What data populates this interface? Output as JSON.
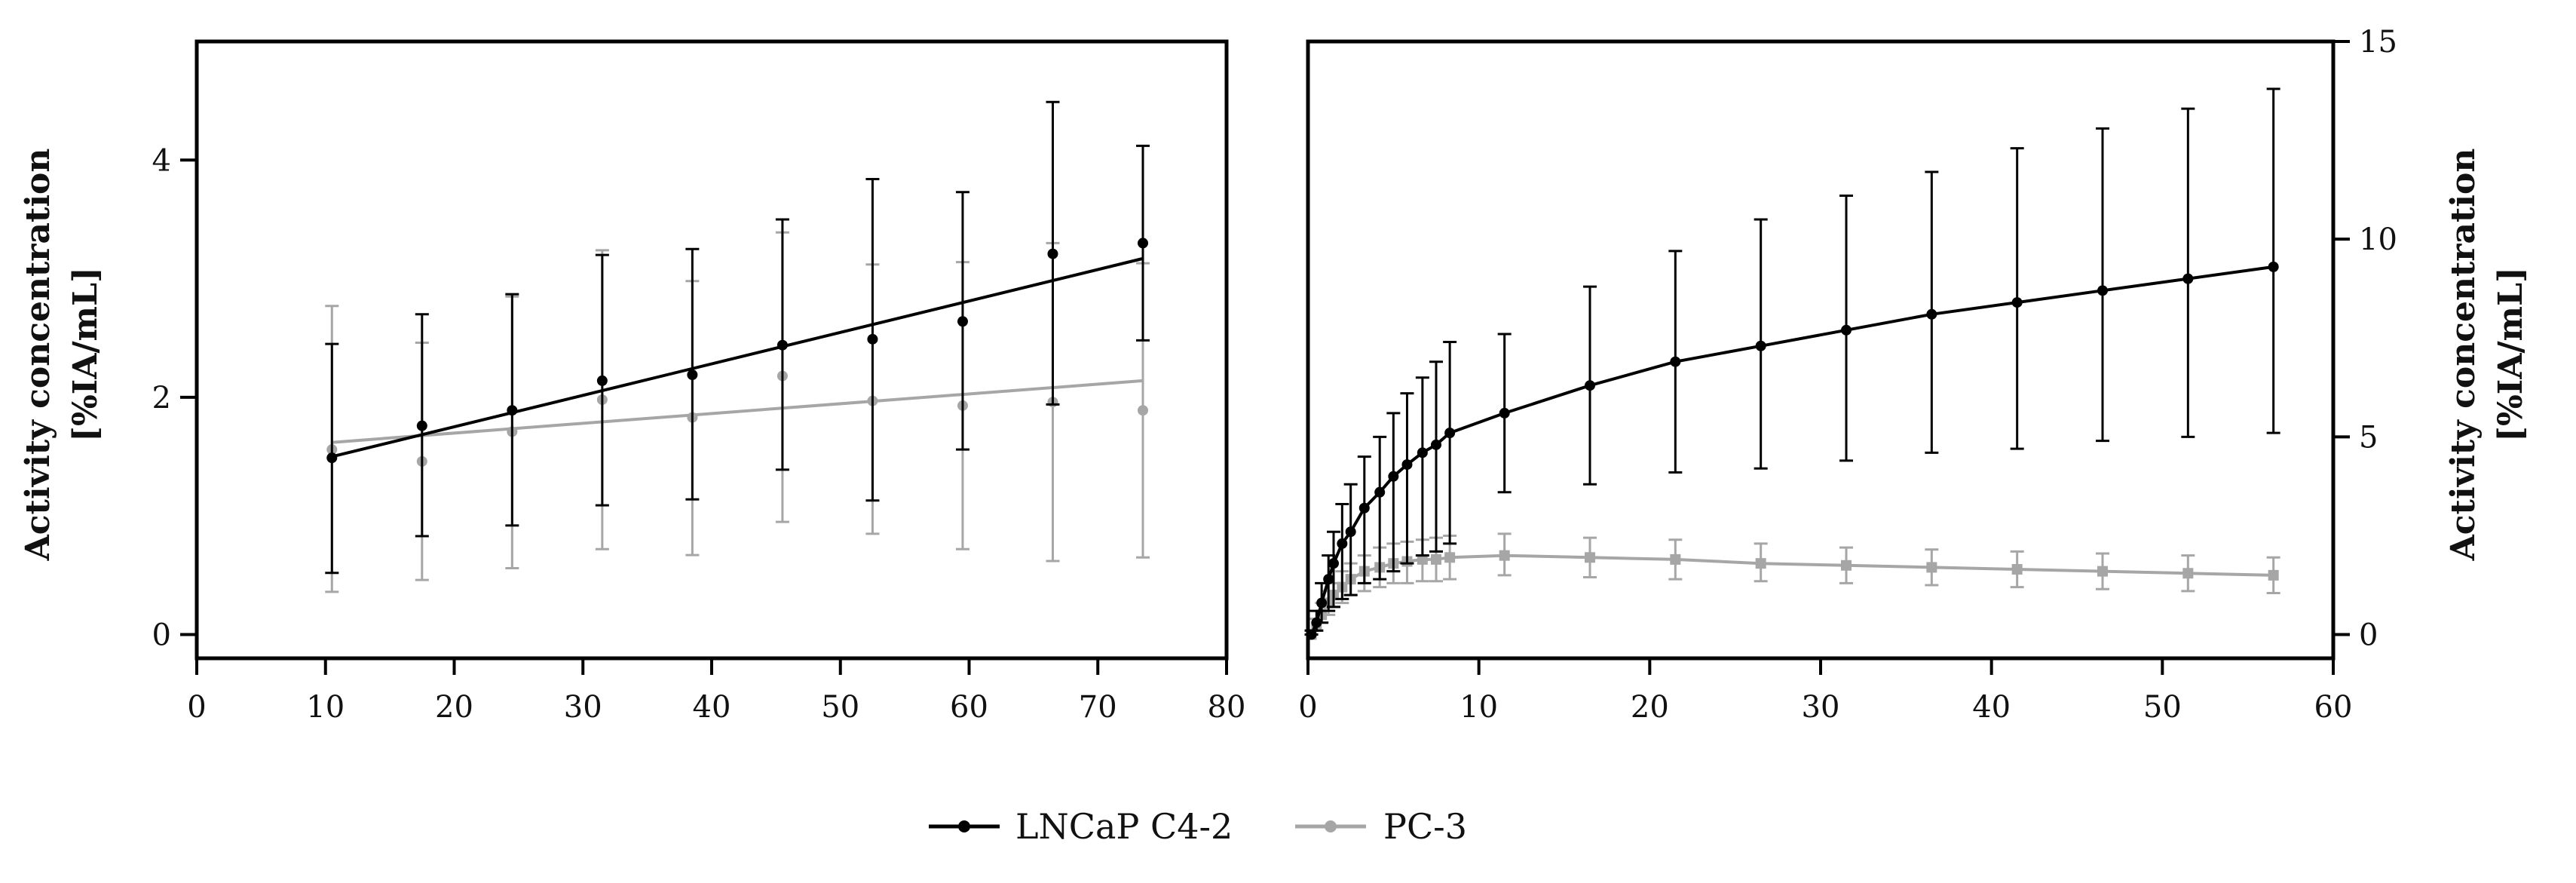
{
  "series_styles": {
    "LNCaP C4-2": {
      "color": "#000000"
    },
    "PC-3": {
      "color": "#a6a6a6"
    }
  },
  "legend": {
    "items": [
      {
        "name": "LNCaP C4-2",
        "color": "#000000"
      },
      {
        "name": "PC-3",
        "color": "#a6a6a6"
      }
    ]
  },
  "chart_data": [
    {
      "type": "scatter",
      "title": "",
      "xlabel": "",
      "ylabel_lines": [
        "Activity concentration",
        "[%IA/mL]"
      ],
      "xlim": [
        0,
        80
      ],
      "ylim": [
        -0.2,
        5.0
      ],
      "xticks": [
        0,
        10,
        20,
        30,
        40,
        50,
        60,
        70,
        80
      ],
      "xtick_labels": [
        "0",
        "10",
        "20",
        "30",
        "40",
        "50",
        "60",
        "70",
        "80"
      ],
      "yticks": [
        0,
        2,
        4
      ],
      "ytick_labels": [
        "0",
        "2",
        "4"
      ],
      "grid": false,
      "series": [
        {
          "name": "LNCaP C4-2",
          "x": [
            10.5,
            17.5,
            24.5,
            31.5,
            38.5,
            45.5,
            52.5,
            59.5,
            66.5,
            73.5
          ],
          "y": [
            1.49,
            1.76,
            1.89,
            2.14,
            2.19,
            2.44,
            2.49,
            2.64,
            3.21,
            3.3
          ],
          "err_low": [
            0.52,
            0.83,
            0.92,
            1.09,
            1.14,
            1.39,
            1.13,
            1.56,
            1.94,
            2.48
          ],
          "err_high": [
            2.45,
            2.7,
            2.87,
            3.2,
            3.25,
            3.5,
            3.84,
            3.73,
            4.49,
            4.12
          ],
          "fit": {
            "x": [
              10.5,
              73.5
            ],
            "y": [
              1.5,
              3.17
            ]
          }
        },
        {
          "name": "PC-3",
          "x": [
            10.5,
            17.5,
            24.5,
            31.5,
            38.5,
            45.5,
            52.5,
            59.5,
            66.5,
            73.5
          ],
          "y": [
            1.56,
            1.46,
            1.71,
            1.98,
            1.83,
            2.18,
            1.97,
            1.93,
            1.96,
            1.89
          ],
          "err_low": [
            0.36,
            0.46,
            0.56,
            0.72,
            0.67,
            0.95,
            0.85,
            0.72,
            0.62,
            0.65
          ],
          "err_high": [
            2.77,
            2.46,
            2.85,
            3.24,
            2.98,
            3.39,
            3.12,
            3.14,
            3.3,
            3.13
          ],
          "fit": {
            "x": [
              10.5,
              73.5
            ],
            "y": [
              1.62,
              2.14
            ]
          }
        }
      ]
    },
    {
      "type": "line",
      "title": "",
      "xlabel": "",
      "ylabel_lines": [
        "Activity concentration",
        "[%IA/mL]"
      ],
      "xlim": [
        0,
        60
      ],
      "ylim": [
        -0.6,
        15.0
      ],
      "xticks": [
        0,
        10,
        20,
        30,
        40,
        50,
        60
      ],
      "xtick_labels": [
        "0",
        "10",
        "20",
        "30",
        "40",
        "50",
        "60"
      ],
      "yticks": [
        0,
        5,
        10,
        15
      ],
      "ytick_labels": [
        "0",
        "5",
        "10",
        "15"
      ],
      "y_axis_side": "right",
      "grid": false,
      "series": [
        {
          "name": "LNCaP C4-2",
          "x": [
            0.2,
            0.5,
            0.8,
            1.2,
            1.5,
            2.0,
            2.5,
            3.3,
            4.2,
            5.0,
            5.8,
            6.7,
            7.5,
            8.3,
            11.5,
            16.5,
            21.5,
            26.5,
            31.5,
            36.5,
            41.5,
            46.5,
            51.5,
            56.5
          ],
          "y": [
            0.0,
            0.3,
            0.8,
            1.4,
            1.8,
            2.3,
            2.6,
            3.2,
            3.6,
            4.0,
            4.3,
            4.6,
            4.8,
            5.1,
            5.6,
            6.3,
            6.9,
            7.3,
            7.7,
            8.1,
            8.4,
            8.7,
            9.0,
            9.3
          ],
          "err_low": [
            0.0,
            0.1,
            0.3,
            0.6,
            0.7,
            0.9,
            1.0,
            1.3,
            1.4,
            1.6,
            1.8,
            2.0,
            2.1,
            2.3,
            3.6,
            3.8,
            4.1,
            4.2,
            4.4,
            4.6,
            4.7,
            4.9,
            5.0,
            5.1
          ],
          "err_high": [
            0.1,
            0.6,
            1.3,
            2.0,
            2.6,
            3.3,
            3.8,
            4.5,
            5.0,
            5.6,
            6.1,
            6.5,
            6.9,
            7.4,
            7.6,
            8.8,
            9.7,
            10.5,
            11.1,
            11.7,
            12.3,
            12.8,
            13.3,
            13.8
          ]
        },
        {
          "name": "PC-3",
          "x": [
            0.2,
            0.5,
            0.8,
            1.2,
            1.5,
            2.0,
            2.5,
            3.3,
            4.2,
            5.0,
            5.8,
            6.7,
            7.5,
            8.3,
            11.5,
            16.5,
            21.5,
            26.5,
            31.5,
            36.5,
            41.5,
            46.5,
            51.5,
            56.5
          ],
          "y": [
            0.0,
            0.2,
            0.5,
            0.8,
            1.0,
            1.2,
            1.4,
            1.6,
            1.7,
            1.8,
            1.85,
            1.9,
            1.9,
            1.95,
            2.0,
            1.95,
            1.9,
            1.8,
            1.75,
            1.7,
            1.65,
            1.6,
            1.55,
            1.5
          ],
          "err_low": [
            0.0,
            0.1,
            0.3,
            0.5,
            0.7,
            0.8,
            1.0,
            1.1,
            1.2,
            1.3,
            1.3,
            1.35,
            1.35,
            1.4,
            1.5,
            1.45,
            1.4,
            1.35,
            1.3,
            1.25,
            1.2,
            1.15,
            1.1,
            1.05
          ],
          "err_high": [
            0.1,
            0.4,
            0.8,
            1.1,
            1.3,
            1.6,
            1.8,
            2.0,
            2.2,
            2.3,
            2.35,
            2.4,
            2.45,
            2.5,
            2.55,
            2.45,
            2.4,
            2.3,
            2.2,
            2.15,
            2.1,
            2.05,
            2.0,
            1.95
          ]
        }
      ]
    }
  ]
}
